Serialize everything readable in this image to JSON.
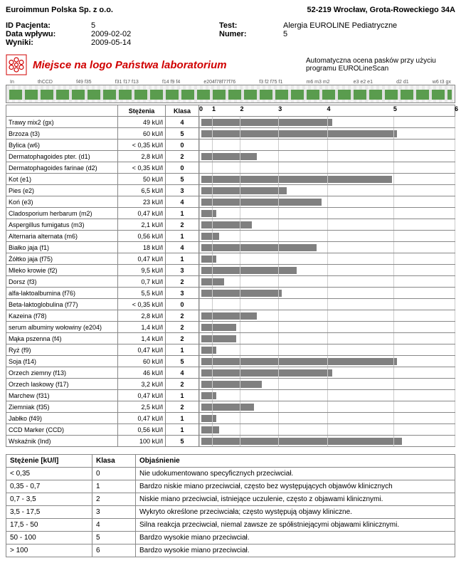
{
  "company": "Euroimmun Polska Sp. z o.o.",
  "address": "52-219 Wrocław, Grota-Roweckiego 34A",
  "labels": {
    "patientId": "ID Pacjenta:",
    "arrivalDate": "Data wpływu:",
    "results": "Wyniki:",
    "test": "Test:",
    "number": "Numer:"
  },
  "info": {
    "patientId": "5",
    "arrivalDate": "2009-02-02",
    "results": "2009-05-14",
    "test": "Alergia EUROLINE Pediatryczne",
    "number": "5"
  },
  "banner": {
    "logoText": "Miejsce na logo Państwa laboratorium",
    "rightText": "Automatyczna ocena pasków przy użyciu programu EUROLineScan"
  },
  "table": {
    "headers": {
      "conc": "Stężenia",
      "class": "Klasa"
    },
    "axis": [
      "0",
      "1",
      "2",
      "3",
      "4",
      "5",
      "6"
    ],
    "axisPositions": [
      0,
      5,
      16,
      31,
      50,
      76,
      100
    ],
    "rows": [
      {
        "name": "Trawy mix2 (gx)",
        "conc": "49 kU/l",
        "class": "4",
        "barPct": 52
      },
      {
        "name": "Brzoza (t3)",
        "conc": "60 kU/l",
        "class": "5",
        "barPct": 78
      },
      {
        "name": "Bylica (w6)",
        "conc": "< 0,35 kU/l",
        "class": "0",
        "barPct": 0
      },
      {
        "name": "Dermatophagoides pter. (d1)",
        "conc": "2,8 kU/l",
        "class": "2",
        "barPct": 22
      },
      {
        "name": "Dermatophagoides farinae (d2)",
        "conc": "< 0,35 kU/l",
        "class": "0",
        "barPct": 0
      },
      {
        "name": "Kot (e1)",
        "conc": "50 kU/l",
        "class": "5",
        "barPct": 76
      },
      {
        "name": "Pies (e2)",
        "conc": "6,5 kU/l",
        "class": "3",
        "barPct": 34
      },
      {
        "name": "Koń (e3)",
        "conc": "23 kU/l",
        "class": "4",
        "barPct": 48
      },
      {
        "name": "Cladosporium herbarum (m2)",
        "conc": "0,47 kU/l",
        "class": "1",
        "barPct": 6
      },
      {
        "name": "Aspergillus fumigatus (m3)",
        "conc": "2,1 kU/l",
        "class": "2",
        "barPct": 20
      },
      {
        "name": "Alternaria alternata (m6)",
        "conc": "0,56 kU/l",
        "class": "1",
        "barPct": 7
      },
      {
        "name": "Białko jaja (f1)",
        "conc": "18 kU/l",
        "class": "4",
        "barPct": 46
      },
      {
        "name": "Żółtko jaja (f75)",
        "conc": "0,47 kU/l",
        "class": "1",
        "barPct": 6
      },
      {
        "name": "Mleko krowie (f2)",
        "conc": "9,5 kU/l",
        "class": "3",
        "barPct": 38
      },
      {
        "name": "Dorsz (f3)",
        "conc": "0,7 kU/l",
        "class": "2",
        "barPct": 9
      },
      {
        "name": "alfa-laktoalbumina (f76)",
        "conc": "5,5 kU/l",
        "class": "3",
        "barPct": 32
      },
      {
        "name": "Beta-laktoglobulina (f77)",
        "conc": "< 0,35 kU/l",
        "class": "0",
        "barPct": 0
      },
      {
        "name": "Kazeina (f78)",
        "conc": "2,8 kU/l",
        "class": "2",
        "barPct": 22
      },
      {
        "name": "serum albuminy wołowiny (e204)",
        "conc": "1,4 kU/l",
        "class": "2",
        "barPct": 14
      },
      {
        "name": "Mąka pszenna (f4)",
        "conc": "1,4 kU/l",
        "class": "2",
        "barPct": 14
      },
      {
        "name": "Ryż (f9)",
        "conc": "0,47 kU/l",
        "class": "1",
        "barPct": 6
      },
      {
        "name": "Soja (f14)",
        "conc": "60 kU/l",
        "class": "5",
        "barPct": 78
      },
      {
        "name": "Orzech ziemny (f13)",
        "conc": "46 kU/l",
        "class": "4",
        "barPct": 52
      },
      {
        "name": "Orzech laskowy (f17)",
        "conc": "3,2 kU/l",
        "class": "2",
        "barPct": 24
      },
      {
        "name": "Marchew (f31)",
        "conc": "0,47 kU/l",
        "class": "1",
        "barPct": 6
      },
      {
        "name": "Ziemniak (f35)",
        "conc": "2,5 kU/l",
        "class": "2",
        "barPct": 21
      },
      {
        "name": "Jabłko (f49)",
        "conc": "0,47 kU/l",
        "class": "1",
        "barPct": 6
      },
      {
        "name": "CCD Marker (CCD)",
        "conc": "0,56 kU/l",
        "class": "1",
        "barPct": 7
      },
      {
        "name": "Wskaźnik (Ind)",
        "conc": "100 kU/l",
        "class": "5",
        "barPct": 80
      }
    ]
  },
  "legend": {
    "headers": {
      "conc": "Stężenie [kU/l]",
      "class": "Klasa",
      "desc": "Objaśnienie"
    },
    "rows": [
      {
        "range": "< 0,35",
        "class": "0",
        "desc": "Nie udokumentowano specyficznych przeciwciał."
      },
      {
        "range": "0,35 - 0,7",
        "class": "1",
        "desc": "Bardzo niskie miano przeciwciał, często bez występujących objawów klinicznych"
      },
      {
        "range": "0,7 - 3,5",
        "class": "2",
        "desc": "Niskie miano przeciwciał, istniejące uczulenie, często z objawami klinicznymi."
      },
      {
        "range": "3,5 - 17,5",
        "class": "3",
        "desc": "Wykryto określone przeciwciała; często występują objawy kliniczne."
      },
      {
        "range": "17,5 - 50",
        "class": "4",
        "desc": "Silna reakcja przeciwciał, niemal zawsze ze spółistniejącymi objawami klinicznymi."
      },
      {
        "range": "50 - 100",
        "class": "5",
        "desc": "Bardzo wysokie miano przeciwciał."
      },
      {
        "range": "> 100",
        "class": "6",
        "desc": "Bardzo wysokie miano przeciwciał."
      }
    ]
  }
}
